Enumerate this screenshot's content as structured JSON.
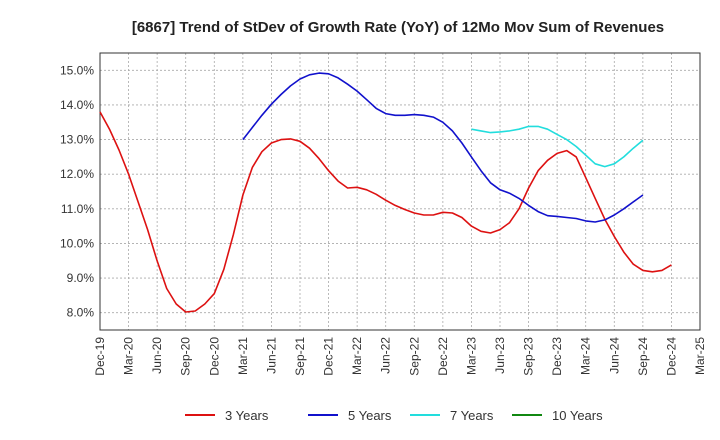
{
  "chart_data": {
    "type": "line",
    "title": "[6867]  Trend of StDev of Growth Rate (YoY) of 12Mo Mov Sum of Revenues",
    "xlabel": "",
    "ylabel": "",
    "ylim": [
      7.5,
      15.5
    ],
    "yticks": [
      8.0,
      9.0,
      10.0,
      11.0,
      12.0,
      13.0,
      14.0,
      15.0
    ],
    "ytick_labels": [
      "8.0%",
      "9.0%",
      "10.0%",
      "11.0%",
      "12.0%",
      "13.0%",
      "14.0%",
      "15.0%"
    ],
    "x_ticks": [
      "Dec-19",
      "Mar-20",
      "Jun-20",
      "Sep-20",
      "Dec-20",
      "Mar-21",
      "Jun-21",
      "Sep-21",
      "Dec-21",
      "Mar-22",
      "Jun-22",
      "Sep-22",
      "Dec-22",
      "Mar-23",
      "Jun-23",
      "Sep-23",
      "Dec-23",
      "Mar-24",
      "Jun-24",
      "Sep-24",
      "Dec-24",
      "Mar-25"
    ],
    "x_start": "Dec-19",
    "x_interval": "monthly",
    "x_count": 64,
    "grid": true,
    "legend_position": "bottom",
    "series": [
      {
        "name": "3 Years",
        "color": "#dd1111",
        "start_index": 0,
        "values": [
          13.8,
          13.3,
          12.7,
          12.0,
          11.2,
          10.4,
          9.5,
          8.7,
          8.25,
          8.02,
          8.05,
          8.25,
          8.55,
          9.25,
          10.25,
          11.4,
          12.2,
          12.65,
          12.9,
          13.0,
          13.02,
          12.95,
          12.75,
          12.45,
          12.1,
          11.8,
          11.6,
          11.62,
          11.55,
          11.42,
          11.25,
          11.1,
          10.98,
          10.88,
          10.82,
          10.82,
          10.9,
          10.88,
          10.75,
          10.5,
          10.35,
          10.3,
          10.4,
          10.6,
          11.0,
          11.6,
          12.1,
          12.4,
          12.6,
          12.68,
          12.5,
          11.9,
          11.3,
          10.7,
          10.2,
          9.75,
          9.4,
          9.22,
          9.18,
          9.22,
          9.38
        ]
      },
      {
        "name": "5 Years",
        "color": "#1111cc",
        "start_index": 15,
        "values": [
          13.0,
          13.35,
          13.7,
          14.02,
          14.3,
          14.55,
          14.75,
          14.87,
          14.92,
          14.9,
          14.78,
          14.6,
          14.4,
          14.15,
          13.9,
          13.75,
          13.7,
          13.7,
          13.72,
          13.7,
          13.65,
          13.5,
          13.25,
          12.9,
          12.5,
          12.1,
          11.75,
          11.55,
          11.45,
          11.3,
          11.1,
          10.92,
          10.8,
          10.78,
          10.75,
          10.72,
          10.65,
          10.62,
          10.68,
          10.82,
          11.0,
          11.2,
          11.4
        ]
      },
      {
        "name": "7 Years",
        "color": "#22dddd",
        "start_index": 39,
        "values": [
          13.3,
          13.25,
          13.2,
          13.22,
          13.25,
          13.3,
          13.38,
          13.38,
          13.3,
          13.15,
          13.0,
          12.8,
          12.55,
          12.3,
          12.22,
          12.3,
          12.5,
          12.75,
          12.98
        ]
      },
      {
        "name": "10 Years",
        "color": "#118811",
        "start_index": 0,
        "values": []
      }
    ]
  }
}
